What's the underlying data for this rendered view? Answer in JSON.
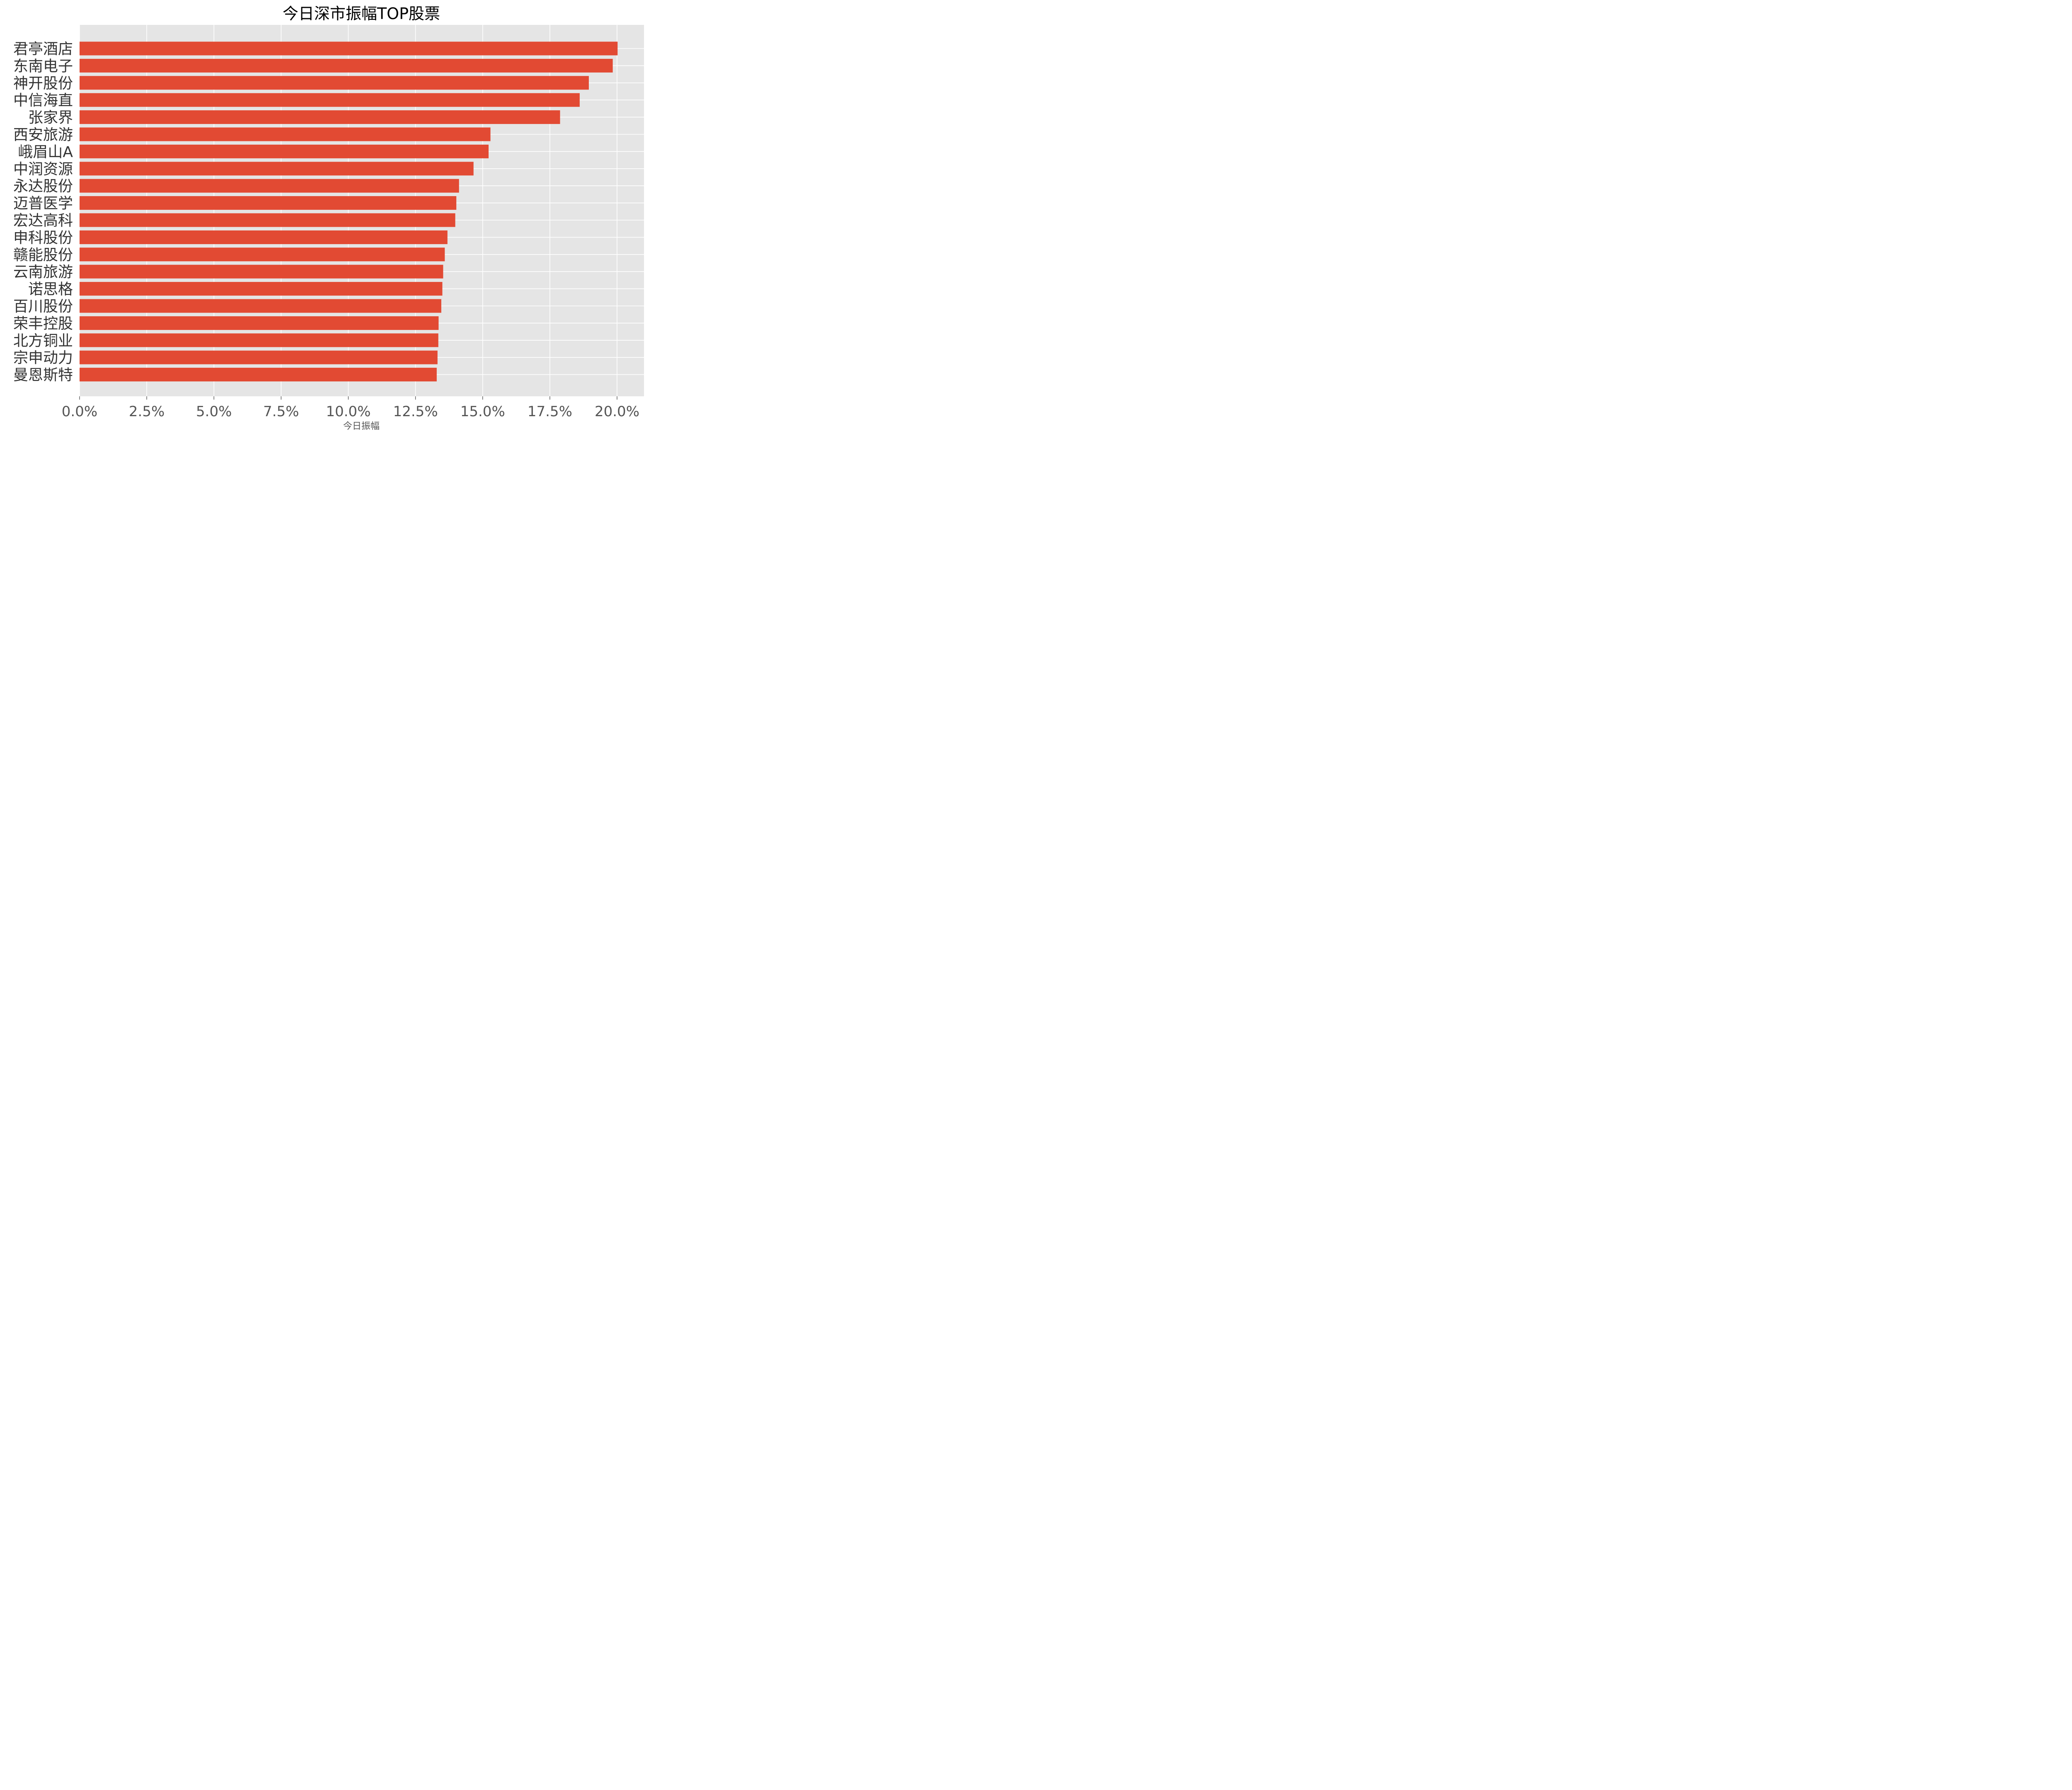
{
  "chart_data": {
    "type": "bar",
    "orientation": "horizontal",
    "title": "今日深市振幅TOP股票",
    "xlabel": "今日振幅",
    "ylabel": "",
    "xlim": [
      0,
      21
    ],
    "x_ticks": [
      0,
      2.5,
      5,
      7.5,
      10,
      12.5,
      15,
      17.5,
      20
    ],
    "x_tick_labels": [
      "0.0%",
      "2.5%",
      "5.0%",
      "7.5%",
      "10.0%",
      "12.5%",
      "15.0%",
      "17.5%",
      "20.0%"
    ],
    "grid": true,
    "bar_color": "#E24A33",
    "background_color": "#E5E5E5",
    "categories": [
      "君亭酒店",
      "东南电子",
      "神开股份",
      "中信海直",
      "张家界",
      "西安旅游",
      "峨眉山A",
      "中润资源",
      "永达股份",
      "迈普医学",
      "宏达高科",
      "申科股份",
      "赣能股份",
      "云南旅游",
      "诺思格",
      "百川股份",
      "荣丰控股",
      "北方铜业",
      "宗申动力",
      "曼恩斯特"
    ],
    "values": [
      20.02,
      19.84,
      18.95,
      18.61,
      17.88,
      15.29,
      15.22,
      14.66,
      14.12,
      14.02,
      13.98,
      13.69,
      13.59,
      13.53,
      13.5,
      13.46,
      13.36,
      13.35,
      13.32,
      13.29
    ]
  }
}
